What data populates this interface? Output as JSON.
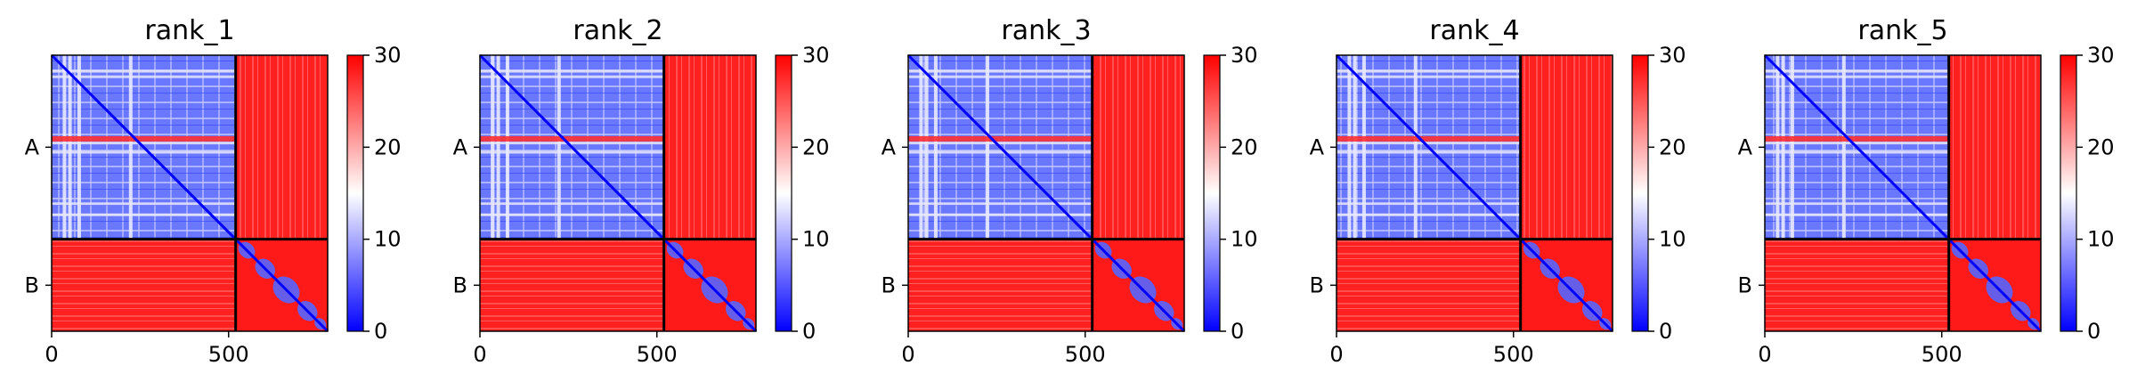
{
  "chart_data": {
    "type": "heatmap",
    "description_type": "PAE matrix (predicted aligned error) per model rank",
    "panels": [
      {
        "title": "rank_1"
      },
      {
        "title": "rank_2"
      },
      {
        "title": "rank_3"
      },
      {
        "title": "rank_4"
      },
      {
        "title": "rank_5"
      }
    ],
    "chains": [
      {
        "label": "A",
        "start": 0,
        "end": 520
      },
      {
        "label": "B",
        "start": 520,
        "end": 780
      }
    ],
    "x_ticks": [
      "0",
      "500"
    ],
    "x_tick_values": [
      0,
      500
    ],
    "xlim": [
      0,
      780
    ],
    "ylim": [
      0,
      780
    ],
    "colorbar": {
      "ticks": [
        "0",
        "10",
        "20",
        "30"
      ],
      "tick_values": [
        0,
        10,
        20,
        30
      ],
      "vmin": 0,
      "vmax": 30,
      "colormap": "bwr"
    },
    "grid": false
  }
}
